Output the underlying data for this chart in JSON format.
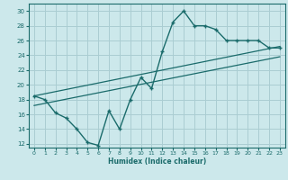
{
  "title": "",
  "xlabel": "Humidex (Indice chaleur)",
  "bg_color": "#cce8eb",
  "grid_color": "#aacdd2",
  "line_color": "#1a6b6b",
  "xlim": [
    -0.5,
    23.5
  ],
  "ylim": [
    11.5,
    31.0
  ],
  "xticks": [
    0,
    1,
    2,
    3,
    4,
    5,
    6,
    7,
    8,
    9,
    10,
    11,
    12,
    13,
    14,
    15,
    16,
    17,
    18,
    19,
    20,
    21,
    22,
    23
  ],
  "yticks": [
    12,
    14,
    16,
    18,
    20,
    22,
    24,
    26,
    28,
    30
  ],
  "main_x": [
    0,
    1,
    2,
    3,
    4,
    5,
    6,
    7,
    8,
    9,
    10,
    11,
    12,
    13,
    14,
    15,
    16,
    17,
    18,
    19,
    20,
    21,
    22,
    23
  ],
  "main_y": [
    18.5,
    18.0,
    16.2,
    15.5,
    14.0,
    12.2,
    11.8,
    16.5,
    14.0,
    18.0,
    21.0,
    19.5,
    24.5,
    28.5,
    30.0,
    28.0,
    28.0,
    27.5,
    26.0,
    26.0,
    26.0,
    26.0,
    25.0,
    25.0
  ],
  "trend1_x": [
    0,
    23
  ],
  "trend1_y": [
    18.5,
    25.2
  ],
  "trend2_x": [
    0,
    23
  ],
  "trend2_y": [
    17.2,
    23.8
  ]
}
